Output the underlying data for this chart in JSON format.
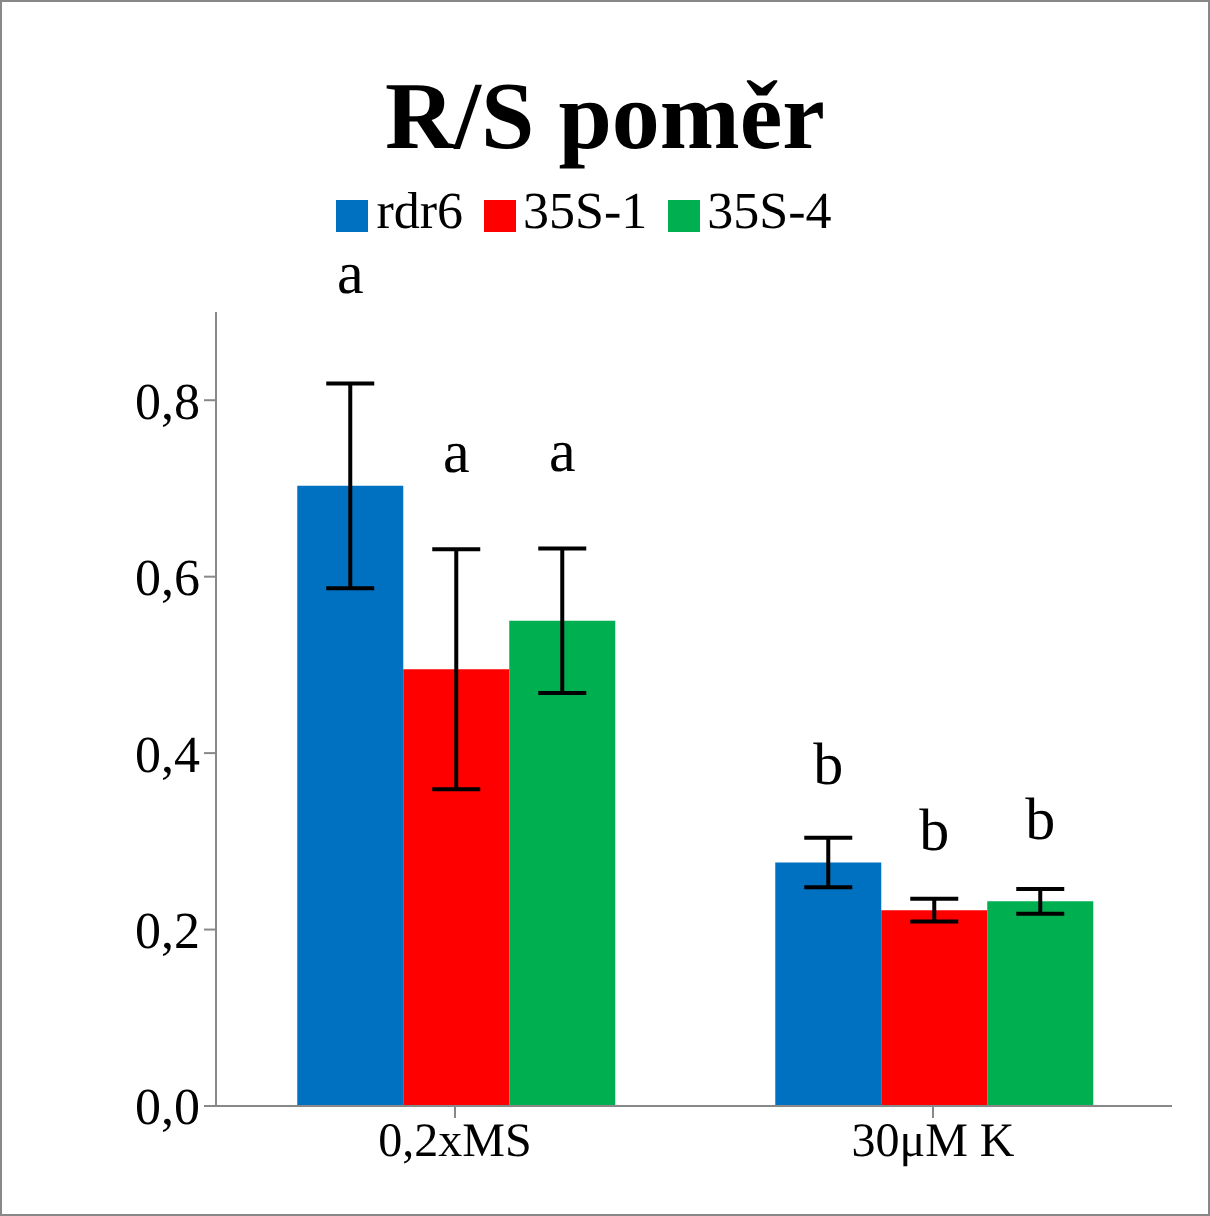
{
  "chart_data": {
    "type": "bar",
    "title": "R/S poměr",
    "categories": [
      "0,2xMS",
      "30μM K"
    ],
    "series": [
      {
        "name": "rdr6",
        "color": "#0070c0",
        "values": [
          0.703,
          0.276
        ],
        "errors": [
          0.116,
          0.028
        ],
        "value_labels": [
          "a",
          "b"
        ]
      },
      {
        "name": "35S-1",
        "color": "#ff0000",
        "values": [
          0.495,
          0.222
        ],
        "errors": [
          0.136,
          0.013
        ],
        "value_labels": [
          "a",
          "b"
        ]
      },
      {
        "name": "35S-4",
        "color": "#00b050",
        "values": [
          0.55,
          0.232
        ],
        "errors": [
          0.082,
          0.014
        ],
        "value_labels": [
          "a",
          "b"
        ]
      }
    ],
    "ylim": [
      0,
      0.9
    ],
    "yticks": [
      {
        "value": 0,
        "label": "0,0"
      },
      {
        "value": 0.2,
        "label": "0,2"
      },
      {
        "value": 0.4,
        "label": "0,4"
      },
      {
        "value": 0.6,
        "label": "0,6"
      },
      {
        "value": 0.8,
        "label": "0,8"
      }
    ],
    "legend": "top",
    "grid": false
  }
}
